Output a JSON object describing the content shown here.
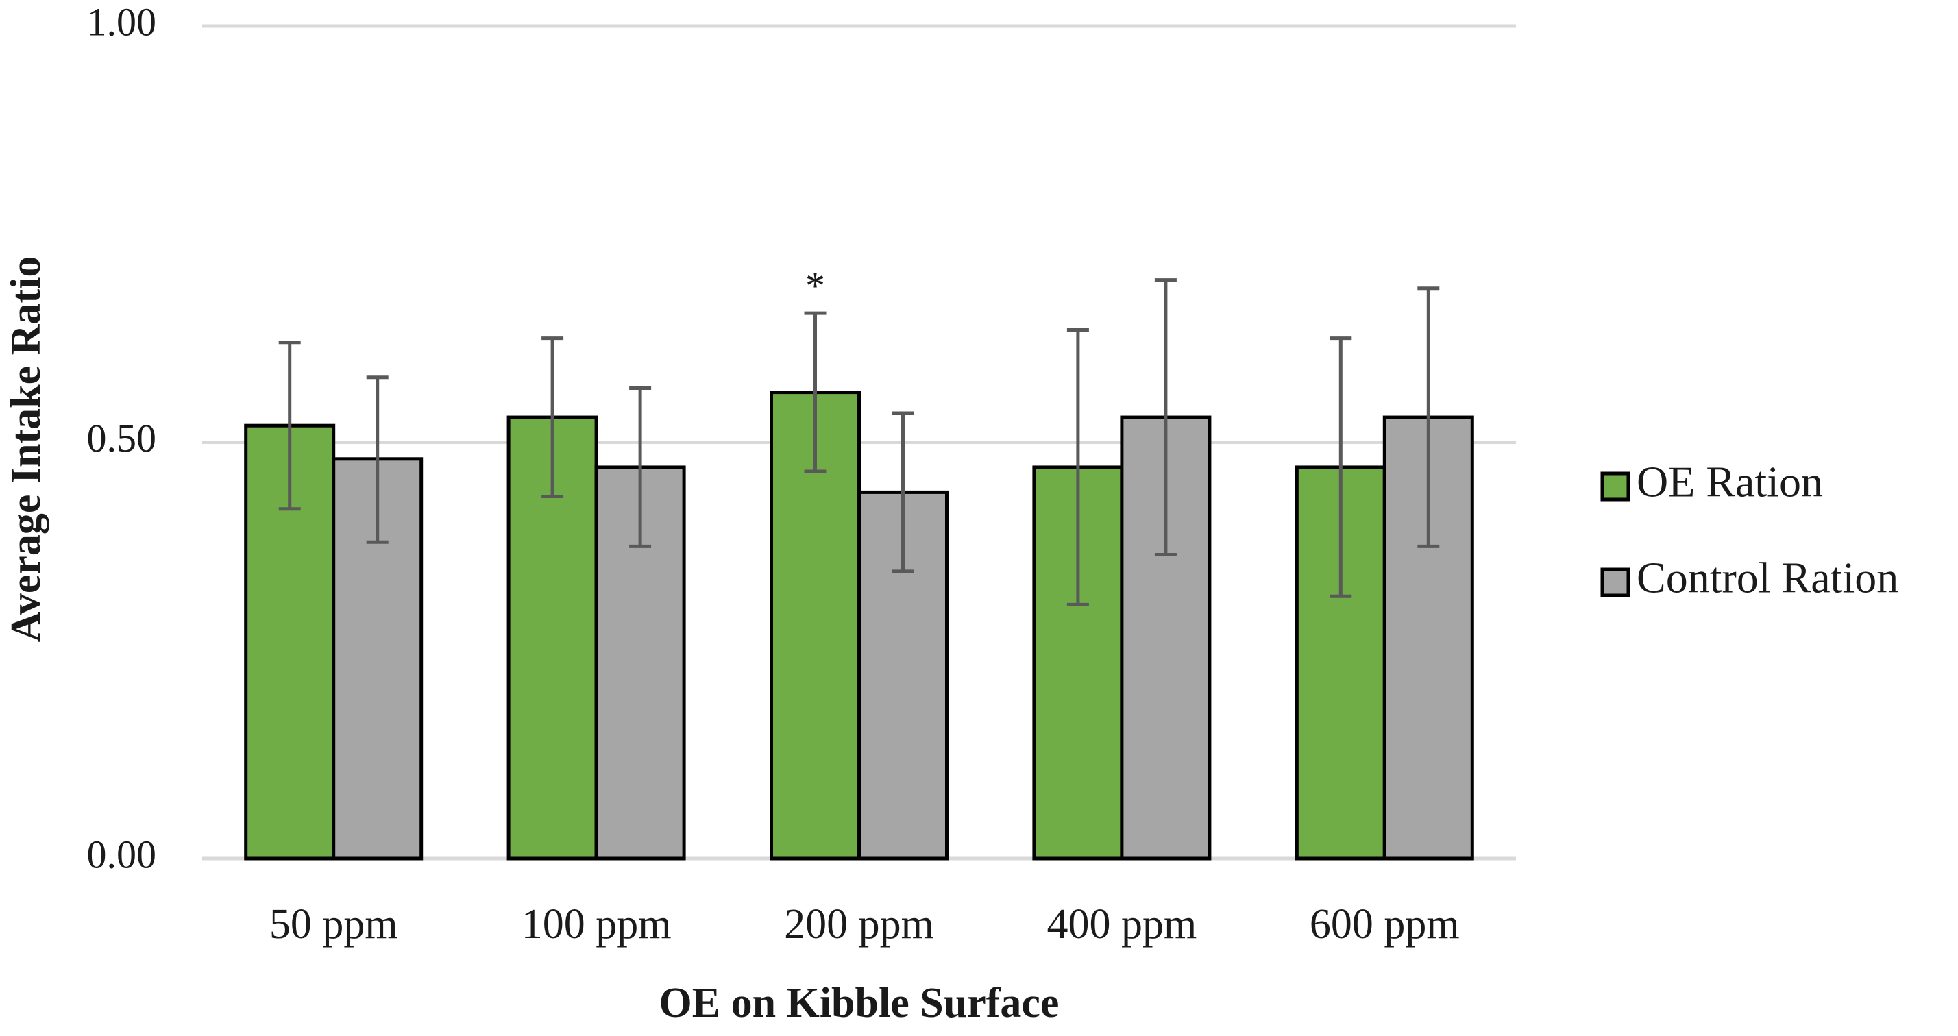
{
  "chart_data": {
    "type": "bar",
    "title": "",
    "xlabel": "OE on Kibble Surface",
    "ylabel": "Average Intake Ratio",
    "ylim": [
      0,
      1
    ],
    "yticks": [
      {
        "value": 0.0,
        "label": "0.00"
      },
      {
        "value": 0.5,
        "label": "0.50"
      },
      {
        "value": 1.0,
        "label": "1.00"
      }
    ],
    "grid": true,
    "legend_position": "right",
    "categories": [
      "50 ppm",
      "100 ppm",
      "200 ppm",
      "400 ppm",
      "600 ppm"
    ],
    "series": [
      {
        "name": "OE Ration",
        "color": "#70ad47",
        "values": [
          0.52,
          0.53,
          0.56,
          0.47,
          0.47
        ],
        "error_low": [
          0.42,
          0.435,
          0.465,
          0.305,
          0.315
        ],
        "error_high": [
          0.62,
          0.625,
          0.655,
          0.635,
          0.625
        ]
      },
      {
        "name": "Control Ration",
        "color": "#a6a6a6",
        "values": [
          0.48,
          0.47,
          0.44,
          0.53,
          0.53
        ],
        "error_low": [
          0.38,
          0.375,
          0.345,
          0.365,
          0.375
        ],
        "error_high": [
          0.578,
          0.565,
          0.535,
          0.695,
          0.685
        ]
      }
    ],
    "annotations": [
      {
        "category": "200 ppm",
        "series": "OE Ration",
        "text": "*"
      }
    ]
  }
}
